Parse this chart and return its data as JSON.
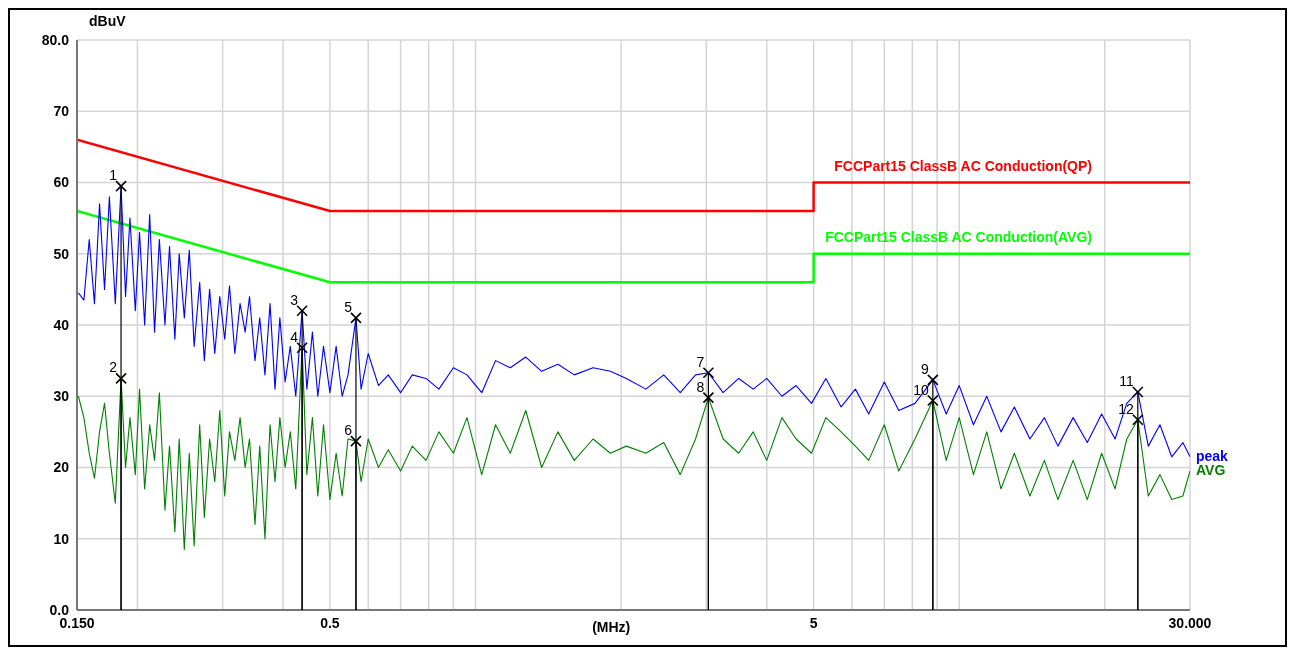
{
  "chart_data": {
    "type": "line",
    "xlabel": "(MHz)",
    "ylabel": "dBuV",
    "log": "x",
    "grid": true,
    "xlim": [
      0.15,
      30
    ],
    "ylim": [
      0,
      80
    ],
    "xticks": [
      {
        "value": 0.15,
        "label": "0.150"
      },
      {
        "value": 0.2,
        "label": null
      },
      {
        "value": 0.3,
        "label": null
      },
      {
        "value": 0.4,
        "label": null
      },
      0.5,
      {
        "value": 0.6,
        "label": null
      },
      {
        "value": 0.7,
        "label": null
      },
      {
        "value": 0.8,
        "label": null
      },
      {
        "value": 0.9,
        "label": null
      },
      {
        "value": 1,
        "label": null
      },
      {
        "value": 2,
        "label": null
      },
      {
        "value": 3,
        "label": null
      },
      {
        "value": 4,
        "label": null
      },
      5,
      {
        "value": 6,
        "label": null
      },
      {
        "value": 7,
        "label": null
      },
      {
        "value": 8,
        "label": null
      },
      {
        "value": 9,
        "label": null
      },
      {
        "value": 10,
        "label": null
      },
      {
        "value": 20,
        "label": null
      },
      {
        "value": 30,
        "label": "30.000"
      }
    ],
    "yticks": [
      {
        "value": 0,
        "label": "0.0"
      },
      10,
      20,
      30,
      40,
      50,
      60,
      70,
      {
        "value": 80,
        "label": "80.0"
      }
    ],
    "x": [
      0.151,
      0.155,
      0.159,
      0.163,
      0.167,
      0.171,
      0.175,
      0.18,
      0.185,
      0.189,
      0.193,
      0.198,
      0.202,
      0.207,
      0.212,
      0.217,
      0.222,
      0.228,
      0.233,
      0.239,
      0.244,
      0.25,
      0.256,
      0.262,
      0.269,
      0.275,
      0.282,
      0.289,
      0.296,
      0.303,
      0.31,
      0.318,
      0.326,
      0.334,
      0.341,
      0.35,
      0.358,
      0.367,
      0.376,
      0.385,
      0.394,
      0.404,
      0.414,
      0.425,
      0.438,
      0.448,
      0.46,
      0.472,
      0.485,
      0.5,
      0.515,
      0.53,
      0.545,
      0.566,
      0.58,
      0.6,
      0.63,
      0.66,
      0.7,
      0.74,
      0.79,
      0.84,
      0.9,
      0.96,
      1.03,
      1.1,
      1.18,
      1.27,
      1.37,
      1.48,
      1.6,
      1.75,
      1.9,
      2.05,
      2.25,
      2.45,
      2.65,
      2.85,
      3.03,
      3.25,
      3.5,
      3.75,
      4.0,
      4.3,
      4.6,
      4.95,
      5.3,
      5.7,
      6.1,
      6.5,
      7.0,
      7.5,
      8.1,
      8.82,
      9.4,
      10.0,
      10.7,
      11.4,
      12.2,
      13.0,
      14.0,
      15.0,
      16.0,
      17.2,
      18.4,
      19.7,
      21.0,
      22.2,
      23.4,
      24.6,
      26.0,
      27.5,
      29.0,
      30.0
    ],
    "series": [
      {
        "name": "FCCPart15 ClassB AC Conduction(QP)",
        "color": "#ff0000",
        "x": [
          0.15,
          0.5,
          5,
          5,
          30
        ],
        "values": [
          66,
          56,
          56,
          60,
          60
        ]
      },
      {
        "name": "FCCPart15 ClassB AC Conduction(AVG)",
        "color": "#00ff00",
        "x": [
          0.15,
          0.5,
          5,
          5,
          30
        ],
        "values": [
          56,
          46,
          46,
          50,
          50
        ]
      },
      {
        "name": "peak",
        "color": "#0000ff",
        "values": [
          44.5,
          43.5,
          52,
          43,
          57,
          45,
          58,
          43,
          59.5,
          44,
          55,
          42,
          53,
          40,
          55.5,
          39,
          52,
          40,
          51,
          38,
          50,
          41,
          50.5,
          37,
          46,
          35,
          45,
          36,
          44,
          38,
          45.5,
          36,
          43,
          39,
          44,
          35,
          41,
          33,
          43,
          31,
          41,
          32,
          37,
          30,
          42,
          31,
          39,
          30,
          37,
          30.5,
          37,
          30,
          33,
          41,
          31,
          36,
          31.5,
          33,
          30.5,
          33,
          32.5,
          31,
          34,
          33,
          30.5,
          35,
          34,
          35.5,
          33.5,
          34.5,
          33,
          34,
          33.5,
          32.5,
          31,
          33,
          30.5,
          33,
          33.3,
          30.5,
          32.5,
          31,
          32.5,
          30,
          31.5,
          29,
          32.5,
          28.5,
          31,
          27.5,
          32,
          28,
          29,
          32.3,
          27.5,
          31.5,
          26,
          30,
          25,
          28.5,
          24,
          27,
          23,
          27,
          23.5,
          27.5,
          24,
          29,
          30.6,
          23,
          26,
          21.5,
          23.5,
          21.5
        ]
      },
      {
        "name": "AVG",
        "color": "#008000",
        "values": [
          30,
          27,
          22,
          18.5,
          25,
          29,
          22,
          15,
          32.5,
          20,
          27,
          19,
          31,
          17,
          26,
          21,
          30.5,
          14,
          23,
          11,
          24,
          8.5,
          22,
          9,
          26,
          13,
          24,
          18,
          28,
          16,
          25,
          21,
          27,
          20,
          24,
          12,
          23,
          10,
          26,
          18,
          27,
          20,
          25,
          17,
          37,
          19,
          27,
          16,
          26,
          15.5,
          22,
          16,
          24,
          23.7,
          18,
          24,
          20,
          22.5,
          19.5,
          23,
          21,
          25,
          22,
          27,
          19,
          26,
          22,
          28,
          20,
          25,
          21,
          24,
          22,
          23,
          22,
          23.5,
          19,
          24,
          29.8,
          24,
          22,
          25,
          21,
          27,
          24,
          22,
          27,
          25,
          23,
          21,
          26,
          19.5,
          24,
          29.4,
          21,
          27,
          19,
          25,
          17,
          22,
          16,
          21,
          15.5,
          21,
          15.5,
          22,
          17,
          24,
          26.7,
          16,
          19,
          15.5,
          16,
          19.5
        ]
      },
      {
        "type": "lollipop",
        "marker": "cross",
        "color": "#000000",
        "x": [
          0.185,
          0.438,
          0.566,
          3.03,
          8.82,
          23.4
        ],
        "values": [
          59.5,
          42,
          41,
          33.3,
          32.3,
          30.6
        ]
      },
      {
        "type": "lollipop",
        "marker": "cross",
        "color": "#000000",
        "x": [
          0.185,
          0.438,
          0.566,
          3.03,
          8.82,
          23.4
        ],
        "values": [
          32.5,
          36.8,
          23.7,
          29.8,
          29.4,
          26.7
        ]
      }
    ],
    "annotations": [
      {
        "text": "1",
        "x": 0.185,
        "y": 59.5
      },
      {
        "text": "2",
        "x": 0.185,
        "y": 32.5
      },
      {
        "text": "3",
        "x": 0.438,
        "y": 42
      },
      {
        "text": "4",
        "x": 0.438,
        "y": 36.8
      },
      {
        "text": "5",
        "x": 0.566,
        "y": 41
      },
      {
        "text": "6",
        "x": 0.566,
        "y": 23.7
      },
      {
        "text": "7",
        "x": 3.03,
        "y": 33.3
      },
      {
        "text": "8",
        "x": 3.03,
        "y": 29.8
      },
      {
        "text": "9",
        "x": 8.82,
        "y": 32.3
      },
      {
        "text": "10",
        "x": 8.82,
        "y": 29.4
      },
      {
        "text": "11",
        "x": 23.4,
        "y": 30.6
      },
      {
        "text": "12",
        "x": 23.4,
        "y": 26.7
      }
    ]
  }
}
